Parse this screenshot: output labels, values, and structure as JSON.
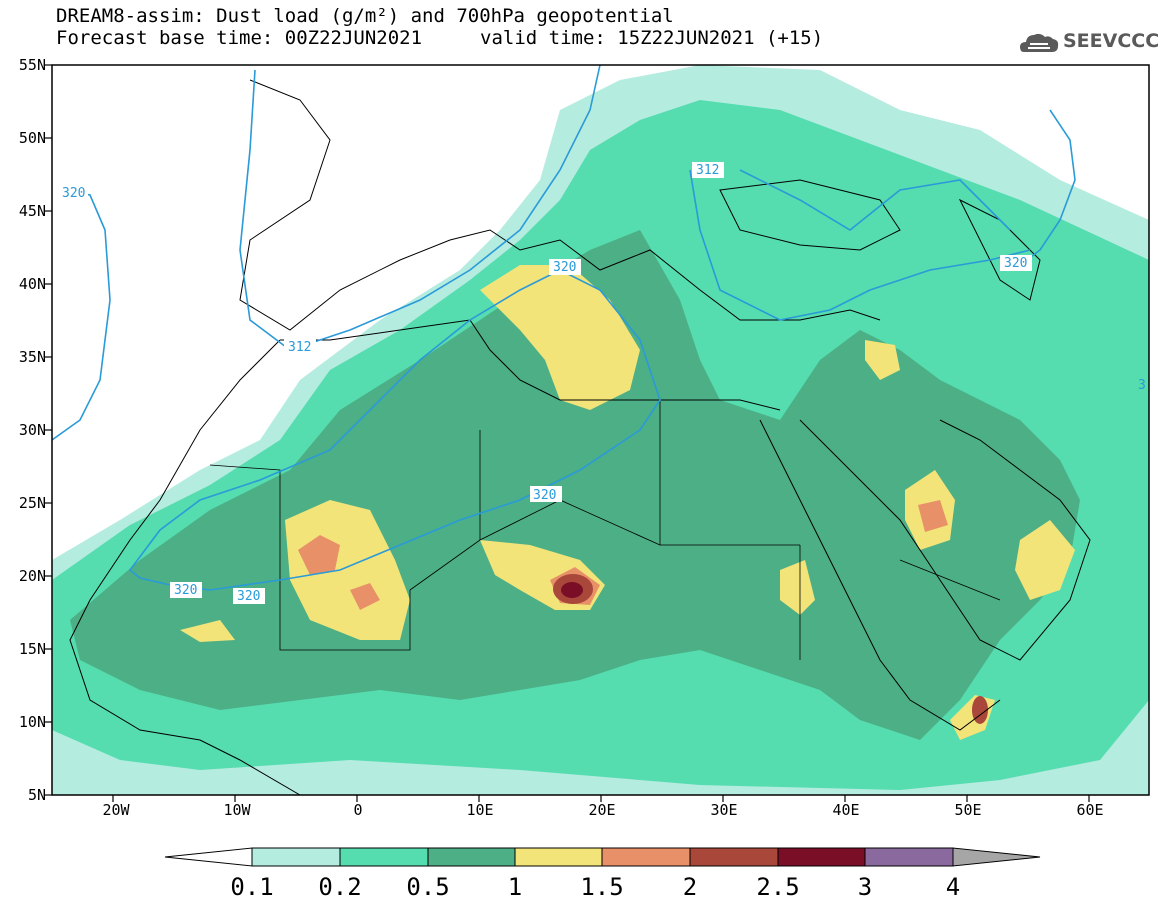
{
  "header": {
    "title_line1": "DREAM8-assim: Dust load (g/m²) and 700hPa geopotential",
    "title_line2": "Forecast base time: 00Z22JUN2021",
    "valid_time": "valid time: 15Z22JUN2021 (+15)",
    "logo_text": "SEEVCCC",
    "logo_icon": "cloud-icon"
  },
  "axes": {
    "lat_labels": [
      "55N",
      "50N",
      "45N",
      "40N",
      "35N",
      "30N",
      "25N",
      "20N",
      "15N",
      "10N",
      "5N"
    ],
    "lon_labels": [
      "20W",
      "10W",
      "0",
      "10E",
      "20E",
      "30E",
      "40E",
      "50E",
      "60E"
    ],
    "lat_range": [
      5,
      55
    ],
    "lon_range": [
      -25,
      65
    ]
  },
  "colorbar": {
    "labels": [
      "0.1",
      "0.2",
      "0.5",
      "1",
      "1.5",
      "2",
      "2.5",
      "3",
      "4"
    ],
    "colors": [
      "#b4ecdf",
      "#55dcaf",
      "#4caf86",
      "#f3e47a",
      "#e89168",
      "#a9473a",
      "#7a0e26",
      "#8a6a9e"
    ],
    "low_arrow_color": "#ffffff",
    "high_arrow_color": "#a6a6a6"
  },
  "contour_labels": [
    "320",
    "320",
    "320",
    "320",
    "320",
    "312",
    "312",
    "320",
    "3"
  ]
}
